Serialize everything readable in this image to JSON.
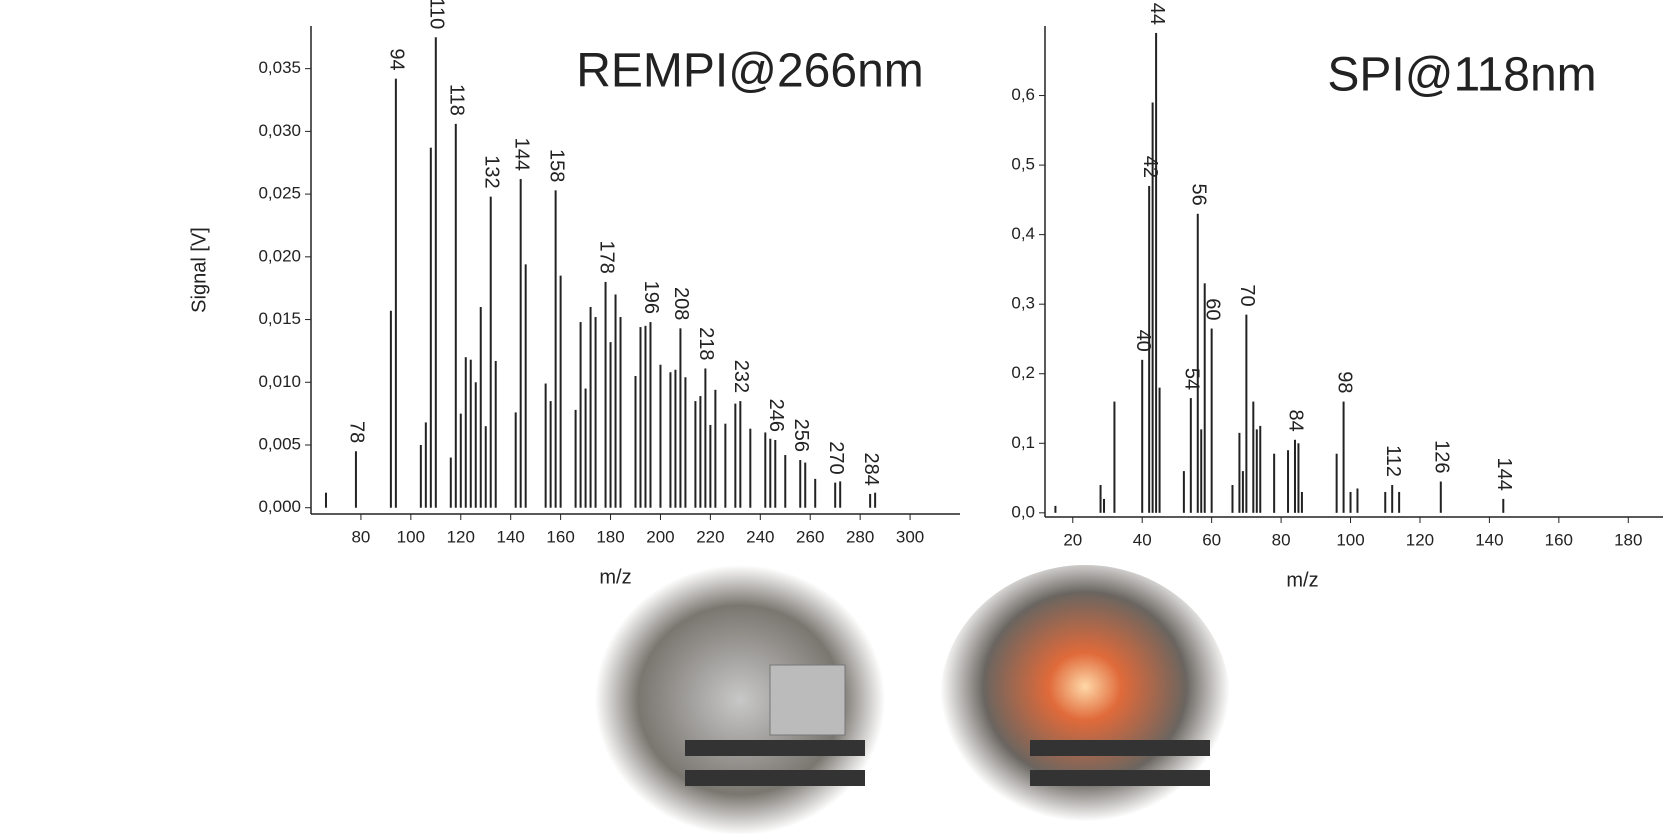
{
  "chart_data": [
    {
      "type": "bar",
      "title": "REMPI@266nm",
      "ylabel": "Signal [V]",
      "xlabel": "m/z",
      "color": "#222222",
      "x": [
        66,
        78,
        92,
        94,
        104,
        106,
        108,
        110,
        116,
        118,
        120,
        122,
        124,
        126,
        128,
        130,
        132,
        134,
        142,
        144,
        146,
        154,
        156,
        158,
        160,
        166,
        168,
        170,
        172,
        174,
        178,
        180,
        182,
        184,
        190,
        192,
        194,
        196,
        200,
        204,
        206,
        208,
        210,
        214,
        216,
        218,
        220,
        222,
        226,
        230,
        232,
        236,
        242,
        244,
        246,
        250,
        256,
        258,
        262,
        270,
        272,
        284,
        286
      ],
      "values": [
        0.0012,
        0.0045,
        0.0157,
        0.0342,
        0.005,
        0.0068,
        0.0287,
        0.0375,
        0.004,
        0.0306,
        0.0075,
        0.012,
        0.0118,
        0.01,
        0.016,
        0.0065,
        0.0248,
        0.0117,
        0.0076,
        0.0262,
        0.0194,
        0.0099,
        0.0085,
        0.0253,
        0.0185,
        0.0078,
        0.0148,
        0.0095,
        0.016,
        0.0152,
        0.018,
        0.0132,
        0.017,
        0.0152,
        0.0105,
        0.0144,
        0.0145,
        0.0148,
        0.0114,
        0.0108,
        0.011,
        0.0143,
        0.0104,
        0.0085,
        0.0089,
        0.0111,
        0.0066,
        0.0094,
        0.0067,
        0.0083,
        0.0085,
        0.0063,
        0.006,
        0.0055,
        0.0054,
        0.0042,
        0.0038,
        0.0036,
        0.0023,
        0.002,
        0.0021,
        0.0011,
        0.0012
      ],
      "labeled_peaks": [
        78,
        94,
        110,
        118,
        132,
        144,
        158,
        178,
        196,
        208,
        218,
        232,
        246,
        256,
        270,
        284
      ],
      "xlim": [
        60,
        320
      ],
      "xticks": [
        80,
        100,
        120,
        140,
        160,
        180,
        200,
        220,
        240,
        260,
        280,
        300
      ],
      "ylim": [
        -0.0005,
        0.0384
      ],
      "yticks": [
        {
          "value": 0,
          "label": "0,000"
        },
        {
          "value": 0.005,
          "label": "0,005"
        },
        {
          "value": 0.01,
          "label": "0,010"
        },
        {
          "value": 0.015,
          "label": "0,015"
        },
        {
          "value": 0.02,
          "label": "0,020"
        },
        {
          "value": 0.025,
          "label": "0,025"
        },
        {
          "value": 0.03,
          "label": "0,030"
        },
        {
          "value": 0.035,
          "label": "0,035"
        }
      ]
    },
    {
      "type": "bar",
      "title": "SPI@118nm",
      "xlabel": "m/z",
      "color": "#222222",
      "x": [
        15,
        28,
        29,
        32,
        40,
        42,
        43,
        44,
        45,
        52,
        54,
        56,
        57,
        58,
        60,
        66,
        68,
        69,
        70,
        72,
        73,
        74,
        78,
        82,
        84,
        85,
        86,
        96,
        98,
        100,
        102,
        110,
        112,
        114,
        126,
        144
      ],
      "values": [
        0.01,
        0.04,
        0.02,
        0.16,
        0.22,
        0.47,
        0.59,
        0.69,
        0.18,
        0.06,
        0.165,
        0.43,
        0.12,
        0.33,
        0.265,
        0.04,
        0.115,
        0.06,
        0.285,
        0.16,
        0.12,
        0.125,
        0.085,
        0.09,
        0.105,
        0.1,
        0.03,
        0.085,
        0.16,
        0.03,
        0.035,
        0.03,
        0.04,
        0.03,
        0.045,
        0.02
      ],
      "labeled_peaks": [
        40,
        42,
        44,
        54,
        56,
        60,
        70,
        84,
        98,
        112,
        126,
        144
      ],
      "xlim": [
        12,
        190
      ],
      "xticks": [
        20,
        40,
        60,
        80,
        100,
        120,
        140,
        160,
        180
      ],
      "ylim": [
        -0.006,
        0.7
      ],
      "yticks": [
        {
          "value": 0,
          "label": "0,0"
        },
        {
          "value": 0.1,
          "label": "0,1"
        },
        {
          "value": 0.2,
          "label": "0,2"
        },
        {
          "value": 0.3,
          "label": "0,3"
        },
        {
          "value": 0.4,
          "label": "0,4"
        },
        {
          "value": 0.5,
          "label": "0,5"
        },
        {
          "value": 0.6,
          "label": "0,6"
        }
      ]
    }
  ]
}
